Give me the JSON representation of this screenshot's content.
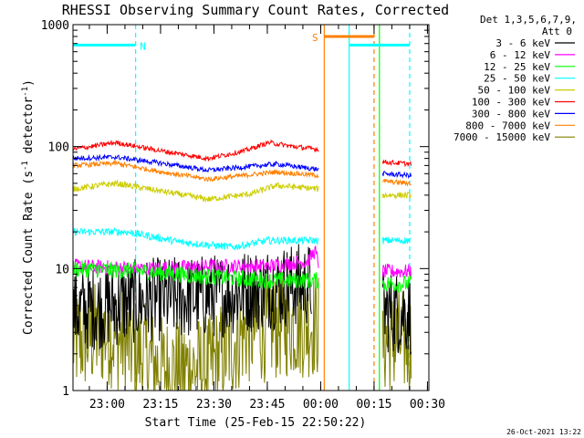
{
  "chart_data": {
    "type": "line",
    "title": "RHESSI Observing Summary Count Rates, Corrected",
    "xlabel": "Start Time (25-Feb-15 22:50:22)",
    "ylabel": "Corrected Count Rate (s",
    "ylabel_sup1": "-1",
    "ylabel_mid": " detector",
    "ylabel_sup2": "-1",
    "ylabel_end": ")",
    "ylog": true,
    "ylim": [
      1,
      1000
    ],
    "xlim_min": [
      0,
      100
    ],
    "xticks": [
      {
        "label": "23:00",
        "min": 9.6
      },
      {
        "label": "23:15",
        "min": 24.6
      },
      {
        "label": "23:30",
        "min": 39.6
      },
      {
        "label": "23:45",
        "min": 54.6
      },
      {
        "label": "00:00",
        "min": 69.6
      },
      {
        "label": "00:15",
        "min": 84.6
      },
      {
        "label": "00:30",
        "min": 99.6
      }
    ],
    "yticks": [
      {
        "label": "1",
        "value": 1
      },
      {
        "label": "10",
        "value": 10
      },
      {
        "label": "100",
        "value": 100
      },
      {
        "label": "1000",
        "value": 1000
      }
    ],
    "legend": {
      "header1": "Det 1,3,5,6,7,9,",
      "header2": "Att 0",
      "placement": "right"
    },
    "series": [
      {
        "name": "3 - 6 keV",
        "color": "#000000",
        "segments": [
          [
            [
              0,
              4.5
            ],
            [
              20,
              5.5
            ],
            [
              40,
              6.0
            ],
            [
              55,
              7.0
            ],
            [
              67,
              7.5
            ]
          ],
          [
            [
              87,
              4.5
            ],
            [
              95,
              4.3
            ]
          ]
        ],
        "noise": 0.35
      },
      {
        "name": "6 - 12 keV",
        "color": "#ff00ff",
        "segments": [
          [
            [
              0,
              10.5
            ],
            [
              20,
              10.0
            ],
            [
              40,
              10.5
            ],
            [
              55,
              10.5
            ],
            [
              66,
              11.5
            ],
            [
              68,
              14.0
            ],
            [
              69,
              11.0
            ]
          ],
          [
            [
              87,
              9.5
            ],
            [
              95,
              9.5
            ]
          ]
        ],
        "noise": 0.06
      },
      {
        "name": "12 - 25 keV",
        "color": "#00ff00",
        "segments": [
          [
            [
              0,
              10.0
            ],
            [
              20,
              9.5
            ],
            [
              40,
              8.5
            ],
            [
              55,
              8.0
            ],
            [
              69,
              8.0
            ]
          ],
          [
            [
              87,
              7.5
            ],
            [
              95,
              7.5
            ]
          ]
        ],
        "noise": 0.07
      },
      {
        "name": "25 - 50 keV",
        "color": "#00ffff",
        "segments": [
          [
            [
              0,
              20.0
            ],
            [
              15,
              20.0
            ],
            [
              30,
              16.5
            ],
            [
              45,
              15.0
            ],
            [
              55,
              17.0
            ],
            [
              69,
              17.0
            ]
          ],
          [
            [
              87,
              17.0
            ],
            [
              95,
              17.0
            ]
          ]
        ],
        "noise": 0.03
      },
      {
        "name": "50 - 100 keV",
        "color": "#cccc00",
        "segments": [
          [
            [
              0,
              45
            ],
            [
              12,
              50
            ],
            [
              25,
              43
            ],
            [
              38,
              37
            ],
            [
              50,
              41
            ],
            [
              57,
              48
            ],
            [
              69,
              45
            ]
          ],
          [
            [
              87,
              40
            ],
            [
              95,
              40
            ]
          ]
        ],
        "noise": 0.025
      },
      {
        "name": "100 - 300 keV",
        "color": "#ff0000",
        "segments": [
          [
            [
              0,
              95
            ],
            [
              12,
              108
            ],
            [
              25,
              92
            ],
            [
              38,
              80
            ],
            [
              48,
              92
            ],
            [
              55,
              108
            ],
            [
              62,
              100
            ],
            [
              69,
              95
            ]
          ],
          [
            [
              87,
              75
            ],
            [
              95,
              72
            ]
          ]
        ],
        "noise": 0.02
      },
      {
        "name": "300 - 800 keV",
        "color": "#0000ff",
        "segments": [
          [
            [
              0,
              80
            ],
            [
              12,
              82
            ],
            [
              25,
              73
            ],
            [
              38,
              64
            ],
            [
              48,
              68
            ],
            [
              57,
              72
            ],
            [
              69,
              65
            ]
          ],
          [
            [
              87,
              60
            ],
            [
              95,
              58
            ]
          ]
        ],
        "noise": 0.02
      },
      {
        "name": "800 - 7000 keV",
        "color": "#ff8000",
        "segments": [
          [
            [
              0,
              70
            ],
            [
              12,
              73
            ],
            [
              25,
              62
            ],
            [
              38,
              54
            ],
            [
              48,
              58
            ],
            [
              57,
              62
            ],
            [
              69,
              58
            ]
          ],
          [
            [
              87,
              52
            ],
            [
              95,
              50
            ]
          ]
        ],
        "noise": 0.02
      },
      {
        "name": "7000 - 15000 keV",
        "color": "#808000",
        "segments": [
          [
            [
              0,
              2.5
            ],
            [
              10,
              3.0
            ],
            [
              25,
              1.5
            ],
            [
              38,
              1.5
            ],
            [
              48,
              3.0
            ],
            [
              60,
              3.5
            ],
            [
              69,
              3.5
            ]
          ],
          [
            [
              87,
              2.5
            ],
            [
              95,
              2.5
            ]
          ]
        ],
        "noise": 0.45
      }
    ],
    "flags": [
      {
        "label": "N",
        "color": "#00ffff",
        "level": 680,
        "from": 0,
        "to": 17.5
      },
      {
        "label": "S",
        "color": "#ff8000",
        "level": 800,
        "from": 70.5,
        "to": 84.5
      },
      {
        "label": "",
        "color": "#00ffff",
        "level": 680,
        "from": 77.5,
        "to": 94.5
      }
    ],
    "vlines": [
      {
        "x": 17.6,
        "color": "#00ffff",
        "dash": true
      },
      {
        "x": 70.6,
        "color": "#ff8000",
        "dash": false
      },
      {
        "x": 77.6,
        "color": "#00ffff",
        "dash": false
      },
      {
        "x": 84.6,
        "color": "#ff8000",
        "dash": true
      },
      {
        "x": 86.1,
        "color": "#00ff00",
        "dash": false
      },
      {
        "x": 94.6,
        "color": "#00ffff",
        "dash": true
      }
    ],
    "timestamp": "26-Oct-2021 13:22"
  }
}
